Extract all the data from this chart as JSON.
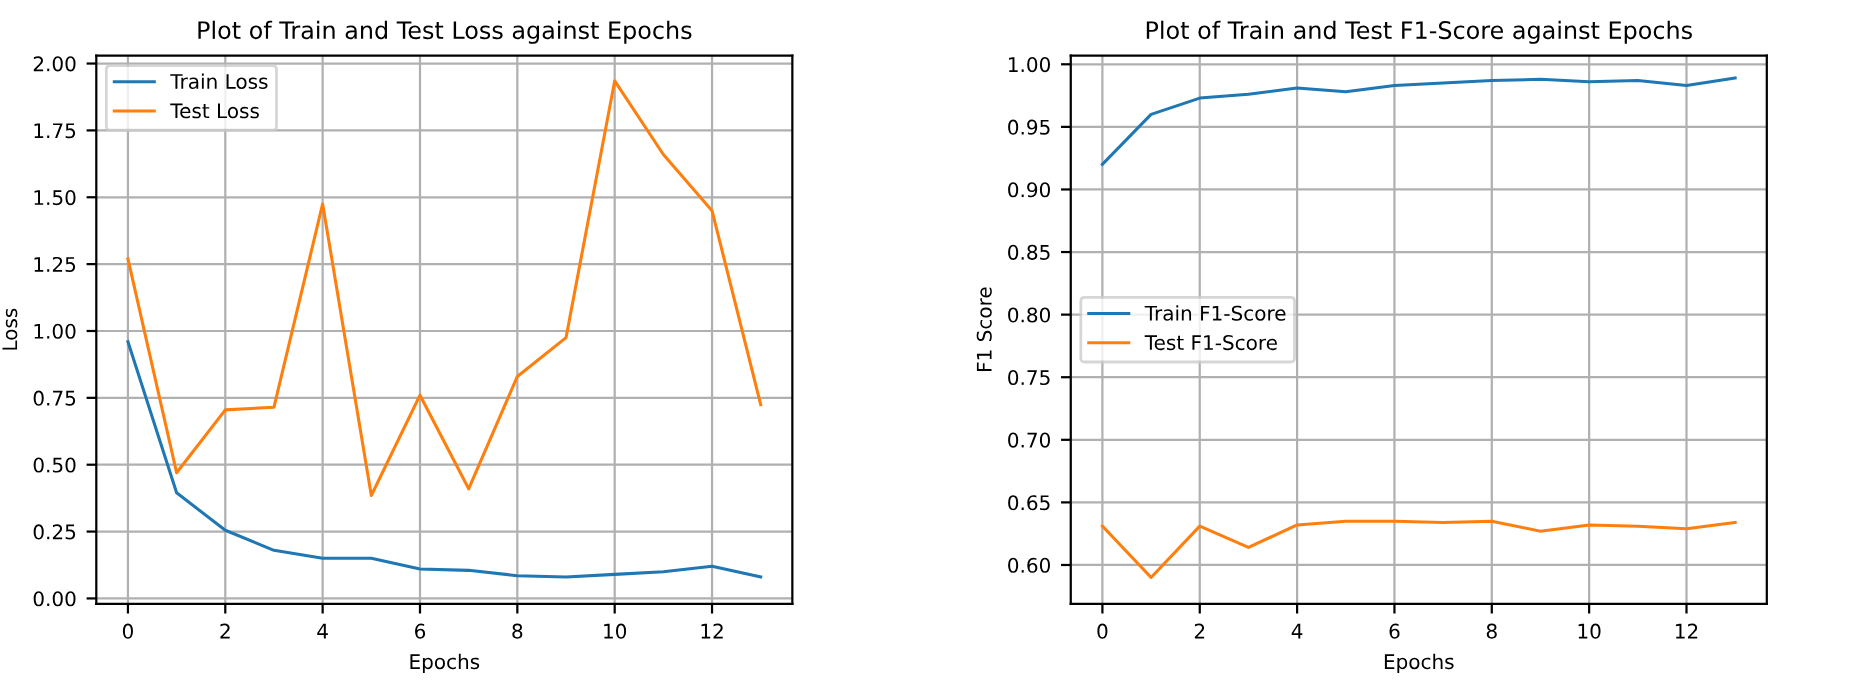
{
  "chart_data": [
    {
      "type": "line",
      "title": "Plot of Train and Test Loss against Epochs",
      "xlabel": "Epochs",
      "ylabel": "Loss",
      "x": [
        0,
        1,
        2,
        3,
        4,
        5,
        6,
        7,
        8,
        9,
        10,
        11,
        12,
        13
      ],
      "series": [
        {
          "name": "Train Loss",
          "color": "#1f77b4",
          "values": [
            0.96,
            0.395,
            0.255,
            0.18,
            0.15,
            0.15,
            0.11,
            0.105,
            0.085,
            0.08,
            0.09,
            0.1,
            0.12,
            0.08
          ]
        },
        {
          "name": "Test Loss",
          "color": "#ff7f0e",
          "values": [
            1.27,
            0.47,
            0.705,
            0.715,
            1.475,
            0.385,
            0.76,
            0.41,
            0.83,
            0.975,
            1.935,
            1.66,
            1.45,
            0.725
          ]
        }
      ],
      "xlim": [
        -0.65,
        13.65
      ],
      "xticks": [
        0,
        2,
        4,
        6,
        8,
        10,
        12
      ],
      "ylim": [
        -0.02,
        2.03
      ],
      "yticks": [
        {
          "value": 0,
          "label": "0.00"
        },
        {
          "value": 0.25,
          "label": "0.25"
        },
        {
          "value": 0.5,
          "label": "0.50"
        },
        {
          "value": 0.75,
          "label": "0.75"
        },
        {
          "value": 1,
          "label": "1.00"
        },
        {
          "value": 1.25,
          "label": "1.25"
        },
        {
          "value": 1.5,
          "label": "1.50"
        },
        {
          "value": 1.75,
          "label": "1.75"
        },
        {
          "value": 2,
          "label": "2.00"
        }
      ],
      "grid": true,
      "legend": "top left"
    },
    {
      "type": "line",
      "title": "Plot of Train and Test F1-Score against Epochs",
      "xlabel": "Epochs",
      "ylabel": "F1 Score",
      "x": [
        0,
        1,
        2,
        3,
        4,
        5,
        6,
        7,
        8,
        9,
        10,
        11,
        12,
        13
      ],
      "series": [
        {
          "name": "Train F1-Score",
          "color": "#1f77b4",
          "values": [
            0.92,
            0.96,
            0.973,
            0.976,
            0.981,
            0.978,
            0.983,
            0.985,
            0.987,
            0.988,
            0.986,
            0.987,
            0.983,
            0.989
          ]
        },
        {
          "name": "Test F1-Score",
          "color": "#ff7f0e",
          "values": [
            0.631,
            0.59,
            0.631,
            0.614,
            0.632,
            0.635,
            0.635,
            0.634,
            0.635,
            0.627,
            0.632,
            0.631,
            0.629,
            0.634
          ]
        }
      ],
      "xlim": [
        -0.65,
        13.65
      ],
      "xticks": [
        0,
        2,
        4,
        6,
        8,
        10,
        12
      ],
      "ylim": [
        0.569,
        1.007
      ],
      "yticks": [
        {
          "value": 0.6,
          "label": "0.60"
        },
        {
          "value": 0.65,
          "label": "0.65"
        },
        {
          "value": 0.7,
          "label": "0.70"
        },
        {
          "value": 0.75,
          "label": "0.75"
        },
        {
          "value": 0.8,
          "label": "0.80"
        },
        {
          "value": 0.85,
          "label": "0.85"
        },
        {
          "value": 0.9,
          "label": "0.90"
        },
        {
          "value": 0.95,
          "label": "0.95"
        },
        {
          "value": 1,
          "label": "1.00"
        }
      ],
      "grid": true,
      "legend": "left"
    }
  ]
}
